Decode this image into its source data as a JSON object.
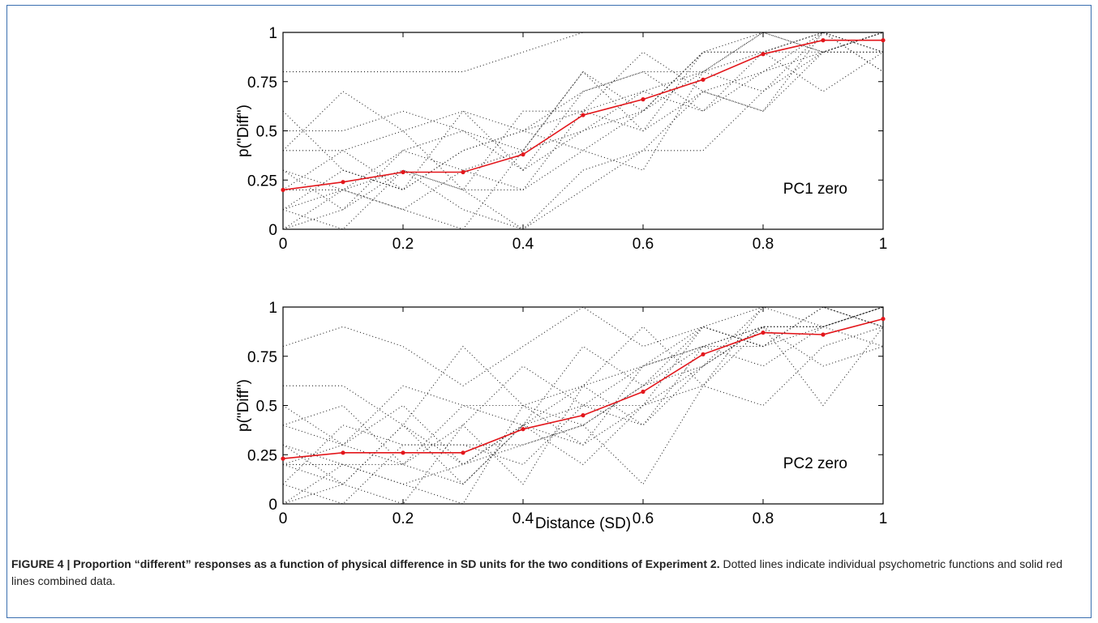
{
  "caption": {
    "figure_label": "FIGURE 4 |",
    "title": "Proportion “different” responses as a function of physical difference in SD units for the two conditions of Experiment 2.",
    "text": "Dotted lines indicate individual psychometric functions and solid red lines combined data."
  },
  "colors": {
    "mean_line": "#e3161b",
    "individual_lines": "#222222",
    "frame_border": "#3a6fb0"
  },
  "chart_data": [
    {
      "type": "line",
      "title": "",
      "annotation": "PC1 zero",
      "xlabel": "",
      "ylabel": "p(\"Diff\")",
      "xlim": [
        0,
        1
      ],
      "ylim": [
        0,
        1
      ],
      "x": [
        0,
        0.1,
        0.2,
        0.3,
        0.4,
        0.5,
        0.6,
        0.7,
        0.8,
        0.9,
        1.0
      ],
      "x_tick_labels": [
        "0",
        "0.2",
        "0.4",
        "0.6",
        "0.8",
        "1"
      ],
      "y_tick_labels": [
        "0",
        "0.25",
        "0.5",
        "0.75",
        "1"
      ],
      "grid": false,
      "series": [
        {
          "style": "solid-red",
          "values": [
            0.2,
            0.24,
            0.29,
            0.29,
            0.38,
            0.58,
            0.66,
            0.76,
            0.89,
            0.96,
            0.96
          ]
        },
        {
          "style": "dotted",
          "values": [
            0.8,
            0.8,
            0.8,
            0.8,
            0.9,
            1.0,
            1.0,
            1.0,
            1.0,
            1.0,
            1.0
          ]
        },
        {
          "style": "dotted",
          "values": [
            0.4,
            0.7,
            0.5,
            0.6,
            0.5,
            0.7,
            0.8,
            0.8,
            1.0,
            0.9,
            0.9
          ]
        },
        {
          "style": "dotted",
          "values": [
            0.5,
            0.5,
            0.6,
            0.5,
            0.4,
            0.8,
            0.6,
            0.9,
            0.9,
            1.0,
            1.0
          ]
        },
        {
          "style": "dotted",
          "values": [
            0.6,
            0.3,
            0.2,
            0.6,
            0.3,
            0.5,
            0.7,
            0.6,
            0.8,
            1.0,
            0.9
          ]
        },
        {
          "style": "dotted",
          "values": [
            0.2,
            0.4,
            0.5,
            0.2,
            0.6,
            0.6,
            0.9,
            0.7,
            0.6,
            0.9,
            1.0
          ]
        },
        {
          "style": "dotted",
          "values": [
            0.3,
            0.1,
            0.4,
            0.3,
            0.2,
            0.4,
            0.3,
            0.8,
            0.9,
            0.7,
            0.9
          ]
        },
        {
          "style": "dotted",
          "values": [
            0.1,
            0.3,
            0.2,
            0.4,
            0.5,
            0.6,
            0.5,
            0.7,
            0.6,
            1.0,
            1.0
          ]
        },
        {
          "style": "dotted",
          "values": [
            0.0,
            0.2,
            0.1,
            0.0,
            0.4,
            0.5,
            0.6,
            0.8,
            1.0,
            0.9,
            1.0
          ]
        },
        {
          "style": "dotted",
          "values": [
            0.3,
            0.2,
            0.4,
            0.5,
            0.3,
            0.7,
            0.8,
            0.6,
            0.9,
            1.0,
            0.8
          ]
        },
        {
          "style": "dotted",
          "values": [
            0.1,
            0.0,
            0.3,
            0.2,
            0.0,
            0.3,
            0.4,
            0.7,
            0.8,
            0.9,
            1.0
          ]
        },
        {
          "style": "dotted",
          "values": [
            0.2,
            0.2,
            0.1,
            0.3,
            0.4,
            0.8,
            0.5,
            0.9,
            0.9,
            0.9,
            0.9
          ]
        },
        {
          "style": "dotted",
          "values": [
            0.0,
            0.1,
            0.3,
            0.1,
            0.0,
            0.2,
            0.4,
            0.4,
            0.7,
            0.9,
            1.0
          ]
        },
        {
          "style": "dotted",
          "values": [
            0.4,
            0.4,
            0.2,
            0.4,
            0.5,
            0.4,
            0.6,
            0.9,
            1.0,
            1.0,
            0.9
          ]
        },
        {
          "style": "dotted",
          "values": [
            0.1,
            0.2,
            0.3,
            0.2,
            0.2,
            0.6,
            0.7,
            0.8,
            0.7,
            1.0,
            0.8
          ]
        }
      ]
    },
    {
      "type": "line",
      "title": "",
      "annotation": "PC2 zero",
      "xlabel": "Distance (SD)",
      "ylabel": "p(\"Diff\")",
      "xlim": [
        0,
        1
      ],
      "ylim": [
        0,
        1
      ],
      "x": [
        0,
        0.1,
        0.2,
        0.3,
        0.4,
        0.5,
        0.6,
        0.7,
        0.8,
        0.9,
        1.0
      ],
      "x_tick_labels": [
        "0",
        "0.2",
        "0.4",
        "0.6",
        "0.8",
        "1"
      ],
      "y_tick_labels": [
        "0",
        "0.25",
        "0.5",
        "0.75",
        "1"
      ],
      "grid": false,
      "series": [
        {
          "style": "solid-red",
          "values": [
            0.23,
            0.26,
            0.26,
            0.26,
            0.38,
            0.45,
            0.57,
            0.76,
            0.87,
            0.86,
            0.94
          ]
        },
        {
          "style": "dotted",
          "values": [
            0.8,
            0.9,
            0.8,
            0.6,
            0.8,
            1.0,
            0.8,
            0.9,
            1.0,
            0.9,
            1.0
          ]
        },
        {
          "style": "dotted",
          "values": [
            0.6,
            0.6,
            0.4,
            0.8,
            0.5,
            0.6,
            0.9,
            0.6,
            1.0,
            1.0,
            0.9
          ]
        },
        {
          "style": "dotted",
          "values": [
            0.5,
            0.3,
            0.6,
            0.5,
            0.4,
            0.8,
            0.6,
            0.9,
            0.8,
            1.0,
            1.0
          ]
        },
        {
          "style": "dotted",
          "values": [
            0.4,
            0.5,
            0.2,
            0.4,
            0.7,
            0.5,
            0.7,
            0.8,
            0.9,
            0.9,
            1.0
          ]
        },
        {
          "style": "dotted",
          "values": [
            0.2,
            0.1,
            0.4,
            0.2,
            0.3,
            0.4,
            0.6,
            0.7,
            1.0,
            1.0,
            0.9
          ]
        },
        {
          "style": "dotted",
          "values": [
            0.3,
            0.2,
            0.1,
            0.0,
            0.5,
            0.3,
            0.5,
            0.6,
            0.9,
            0.9,
            1.0
          ]
        },
        {
          "style": "dotted",
          "values": [
            0.1,
            0.4,
            0.3,
            0.3,
            0.2,
            0.5,
            0.4,
            0.8,
            0.7,
            0.9,
            0.8
          ]
        },
        {
          "style": "dotted",
          "values": [
            0.0,
            0.2,
            0.2,
            0.1,
            0.4,
            0.2,
            0.5,
            0.9,
            0.8,
            1.0,
            1.0
          ]
        },
        {
          "style": "dotted",
          "values": [
            0.3,
            0.1,
            0.0,
            0.4,
            0.1,
            0.6,
            0.4,
            0.7,
            0.9,
            0.7,
            0.8
          ]
        },
        {
          "style": "dotted",
          "values": [
            0.2,
            0.3,
            0.5,
            0.2,
            0.4,
            0.3,
            0.7,
            0.9,
            0.8,
            0.9,
            1.0
          ]
        },
        {
          "style": "dotted",
          "values": [
            0.1,
            0.0,
            0.3,
            0.3,
            0.3,
            0.4,
            0.1,
            0.6,
            0.5,
            0.8,
            0.9
          ]
        },
        {
          "style": "dotted",
          "values": [
            0.4,
            0.3,
            0.2,
            0.5,
            0.5,
            0.4,
            0.6,
            0.8,
            0.9,
            0.5,
            0.9
          ]
        },
        {
          "style": "dotted",
          "values": [
            0.2,
            0.2,
            0.1,
            0.2,
            0.4,
            0.6,
            0.7,
            0.8,
            0.8,
            1.0,
            0.9
          ]
        },
        {
          "style": "dotted",
          "values": [
            0.0,
            0.1,
            0.4,
            0.1,
            0.4,
            0.5,
            0.5,
            0.7,
            0.9,
            0.9,
            1.0
          ]
        }
      ]
    }
  ]
}
